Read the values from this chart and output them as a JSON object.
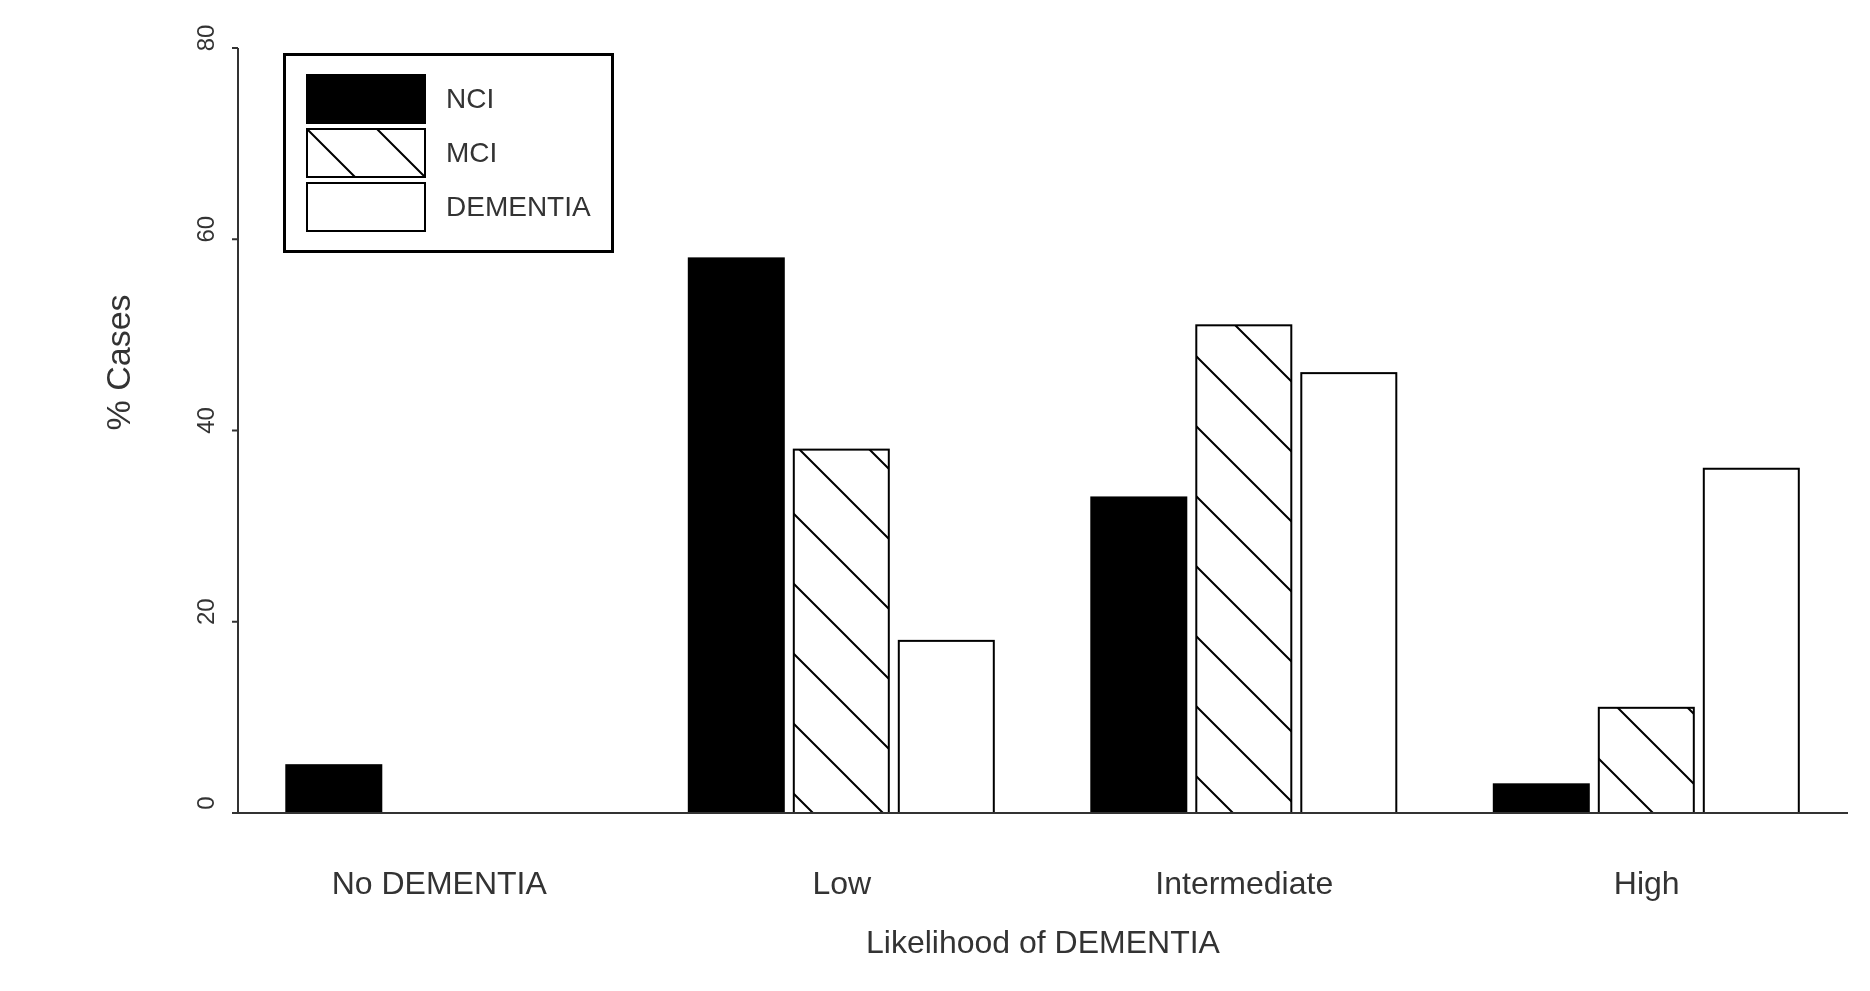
{
  "chart_data": {
    "type": "bar",
    "xlabel": "Likelihood of DEMENTIA",
    "ylabel": "% Cases",
    "categories": [
      "No DEMENTIA",
      "Low",
      "Intermediate",
      "High"
    ],
    "series": [
      {
        "name": "NCI",
        "color": "#000000",
        "values": [
          5,
          58,
          33,
          3
        ]
      },
      {
        "name": "MCI",
        "color": "#ffffff",
        "values": [
          0,
          38,
          51,
          11
        ]
      },
      {
        "name": "DEMENTIA",
        "color": "#ffffff",
        "values": [
          0,
          18,
          46,
          36
        ]
      }
    ],
    "ylim": [
      0,
      80
    ],
    "yticks": [
      0,
      20,
      40,
      60,
      80
    ],
    "legend": "top left"
  }
}
